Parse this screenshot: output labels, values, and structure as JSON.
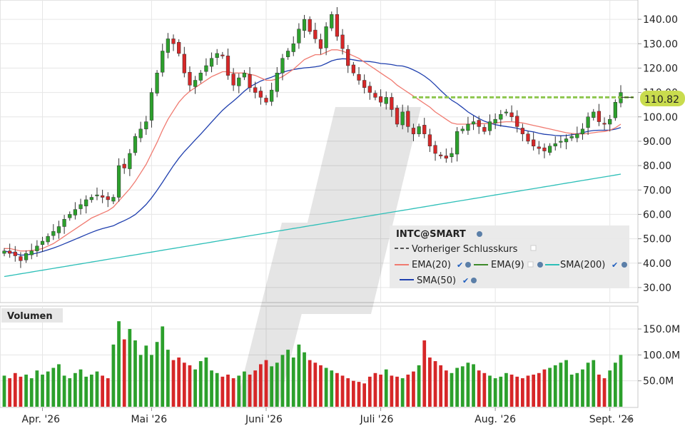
{
  "chart_data": {
    "type": "candlestick",
    "symbol_label": "INTC@SMART",
    "last_price_label": "110.82",
    "prev_close": 108.0,
    "price_axis": {
      "ylim": [
        25,
        145
      ],
      "ticks": [
        "140.00",
        "130.00",
        "120.00",
        "110.00",
        "100.00",
        "90.00",
        "80.00",
        "70.00",
        "60.00",
        "50.00",
        "40.00",
        "30.00"
      ],
      "tick_values": [
        140,
        130,
        120,
        110,
        100,
        90,
        80,
        70,
        60,
        50,
        40,
        30
      ]
    },
    "volume_axis": {
      "label": "Volumen",
      "ylim": [
        0,
        190
      ],
      "ticks": [
        "150.0M",
        "100.0M",
        "50.0M"
      ],
      "tick_values": [
        150,
        100,
        50
      ]
    },
    "x_axis": {
      "labels": [
        "Apr. '26",
        "Mai '26",
        "Juni '26",
        "Juli '26",
        "Aug. '26",
        "Sept. '26"
      ],
      "label_index": [
        7,
        27,
        48,
        69,
        90,
        111
      ]
    },
    "legend": {
      "items": [
        {
          "label": "Vorheriger Schlusskurs",
          "color": "#555555"
        },
        {
          "label": "EMA(20)",
          "color": "#f07a70"
        },
        {
          "label": "EMA(9)",
          "color": "#3d8a2a"
        },
        {
          "label": "SMA(200)",
          "color": "#2dbfb8"
        },
        {
          "label": "SMA(50)",
          "color": "#1f3fae"
        }
      ]
    },
    "colors": {
      "up": "#2ca02c",
      "down": "#d62728",
      "grid": "#e6e6e6",
      "last_price_bg": "#c9dc4e"
    },
    "closes": [
      45,
      44,
      43,
      41,
      44,
      45,
      47,
      49,
      51,
      53,
      55,
      58,
      60,
      62,
      64,
      66,
      67,
      68,
      67,
      66,
      67,
      80,
      79,
      85,
      92,
      95,
      98,
      110,
      118,
      127,
      132,
      130,
      126,
      118,
      113,
      115,
      118,
      121,
      124,
      126,
      125,
      117,
      113,
      116,
      118,
      112,
      110,
      108,
      106,
      111,
      118,
      124,
      127,
      130,
      136,
      140,
      135,
      132,
      128,
      137,
      142,
      133,
      128,
      121,
      118,
      115,
      112,
      110,
      108,
      106,
      108,
      103,
      97,
      102,
      96,
      93,
      96,
      93,
      88,
      85,
      84,
      83,
      85,
      94,
      95,
      97,
      98,
      96,
      94,
      98,
      99,
      101,
      102,
      100,
      96,
      93,
      90,
      88,
      87,
      86,
      88,
      89,
      90,
      91,
      92,
      93,
      95,
      100,
      102,
      98,
      97,
      99,
      106,
      110
    ],
    "volumes": [
      60,
      55,
      65,
      58,
      62,
      55,
      70,
      62,
      68,
      75,
      82,
      60,
      55,
      65,
      72,
      58,
      62,
      68,
      60,
      55,
      120,
      165,
      130,
      150,
      128,
      100,
      118,
      100,
      125,
      155,
      110,
      90,
      95,
      85,
      80,
      72,
      88,
      95,
      70,
      65,
      58,
      62,
      55,
      60,
      68,
      62,
      70,
      82,
      90,
      78,
      85,
      100,
      110,
      95,
      120,
      105,
      90,
      85,
      80,
      75,
      70,
      65,
      60,
      55,
      50,
      48,
      45,
      58,
      65,
      62,
      72,
      60,
      58,
      55,
      62,
      68,
      80,
      128,
      95,
      88,
      80,
      70,
      65,
      75,
      78,
      85,
      82,
      70,
      65,
      60,
      55,
      58,
      65,
      62,
      58,
      55,
      60,
      62,
      65,
      72,
      75,
      80,
      85,
      90,
      62,
      65,
      72,
      85,
      90,
      62,
      55,
      70,
      85,
      100
    ],
    "ema20": [
      46,
      46,
      45.5,
      45,
      45,
      45.2,
      45.5,
      46,
      47,
      48,
      49.5,
      51,
      52.5,
      54,
      55.5,
      57,
      58.5,
      59.5,
      60.5,
      61.5,
      63,
      65.5,
      68,
      70.5,
      73.5,
      77,
      80.5,
      85,
      89.5,
      94.5,
      99,
      102.5,
      106,
      108.5,
      110.5,
      112,
      113.5,
      115,
      116.5,
      117.5,
      118.5,
      118.5,
      118,
      118,
      118,
      117.5,
      117,
      116,
      115,
      115,
      115.5,
      116.5,
      118,
      119.5,
      121.5,
      123.5,
      124.5,
      125.5,
      125.5,
      126.5,
      127.5,
      127.5,
      127,
      126,
      125,
      124,
      122.5,
      121,
      119.5,
      118,
      116.5,
      115,
      113,
      111.5,
      110,
      108.5,
      107,
      105.5,
      104,
      102,
      100.5,
      99,
      97.5,
      97,
      97,
      97,
      97.2,
      97.2,
      97.2,
      97.3,
      97.5,
      97.8,
      98,
      98,
      97.8,
      97.5,
      97,
      96.5,
      96,
      95.5,
      95,
      94.5,
      94,
      93.5,
      93.2,
      93,
      93,
      93.2,
      93.5,
      93.8,
      94,
      94.5,
      95.5,
      97
    ]
  }
}
